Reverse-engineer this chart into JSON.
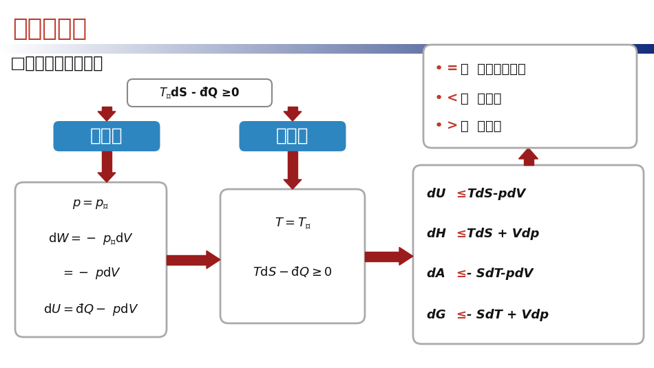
{
  "title": "可逆性判据",
  "subtitle": "□基本的可逆性判据",
  "bg_color": "#ffffff",
  "title_color": "#c0392b",
  "blue_box_color": "#2e86c1",
  "arrow_color": "#9b1c1c",
  "box1_label": "力平衡",
  "box2_label": "热平衡",
  "legend_items": [
    [
      "=",
      "：  可逆，平衡态"
    ],
    [
      "<",
      "：  不可逆"
    ],
    [
      ">",
      "：  不可能"
    ]
  ],
  "box3_rows": [
    [
      "dU ",
      "≤",
      "TdS-pdV"
    ],
    [
      "dH ",
      "≤",
      "TdS + Vdp"
    ],
    [
      "dA ",
      "≤",
      "- SdT-pdV"
    ],
    [
      "dG ",
      "≤",
      "- SdT + Vdp"
    ]
  ]
}
